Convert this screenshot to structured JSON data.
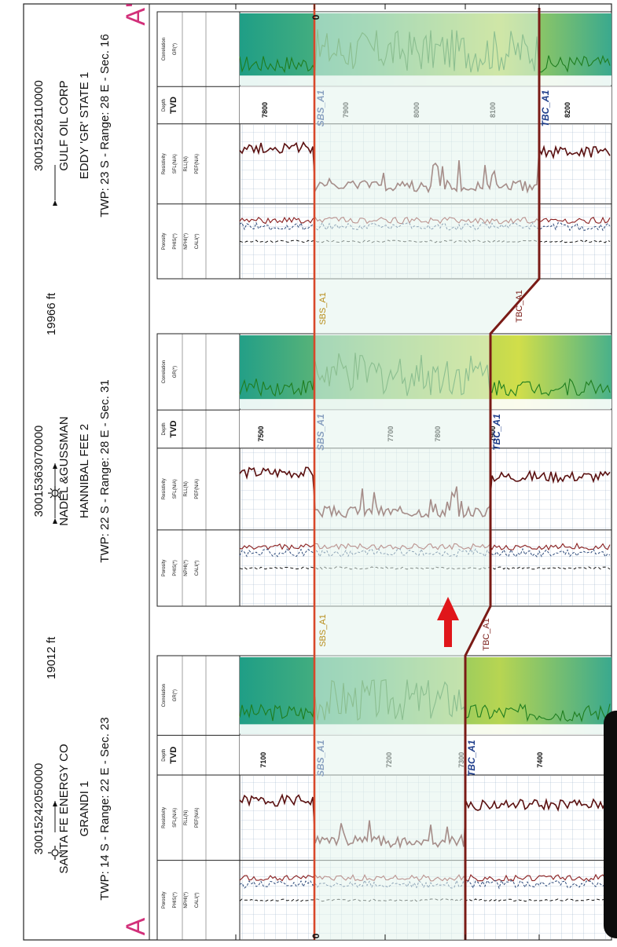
{
  "section": {
    "left_marker": "A",
    "right_marker": "A'",
    "spacings": [
      "19012 ft",
      "19966 ft"
    ]
  },
  "wells": [
    {
      "api": "30015242050000",
      "operator": "SANTA FE ENERGY CO",
      "name": "GRANDI 1",
      "location": "TWP: 14 S - Range: 22 E - Sec. 23",
      "depths": [
        "7100",
        "7200",
        "7300",
        "7400"
      ],
      "top_label": "SBS_A1",
      "base_label": "TBC_A1"
    },
    {
      "api": "30015363070000",
      "operator": "NADEL &GUSSMAN",
      "name": "HANNIBAL FEE 2",
      "location": "TWP: 22 S - Range: 28 E - Sec. 31",
      "depths": [
        "7500",
        "7700",
        "7800",
        "7900"
      ],
      "top_label": "SBS_A1",
      "base_label": "TBC_A1"
    },
    {
      "api": "30015226110000",
      "operator": "GULF OIL CORP",
      "name": "EDDY 'GR' STATE 1",
      "location": "TWP: 23 S - Range: 28 E - Sec. 16",
      "depths": [
        "7800",
        "7900",
        "8000",
        "8100",
        "8200"
      ],
      "top_label": "SBS_A1",
      "base_label": "TBC_A1"
    }
  ],
  "track_headers": {
    "gr": [
      "Correlation",
      "GR(*)"
    ],
    "depth": [
      "Depth",
      "TVD"
    ],
    "resistivity": [
      "Resistivity",
      "SFL(N/A)",
      "RLL(N)",
      "PEF(N/A)"
    ],
    "porosity": [
      "Porosity",
      "PHIS(*)",
      "NPHI(*)",
      "CALI(*)"
    ]
  },
  "correlation_labels": [
    "SBS_A1",
    "SBS_A1",
    "TBC_A1",
    "TBC_A1"
  ],
  "datum_label": "0",
  "colors": {
    "top_line": "#d8482a",
    "base_line": "#7a1b16",
    "arrow": "#e0161a",
    "zone_fill": "#e3f4ec",
    "marker": "#d2307a"
  }
}
